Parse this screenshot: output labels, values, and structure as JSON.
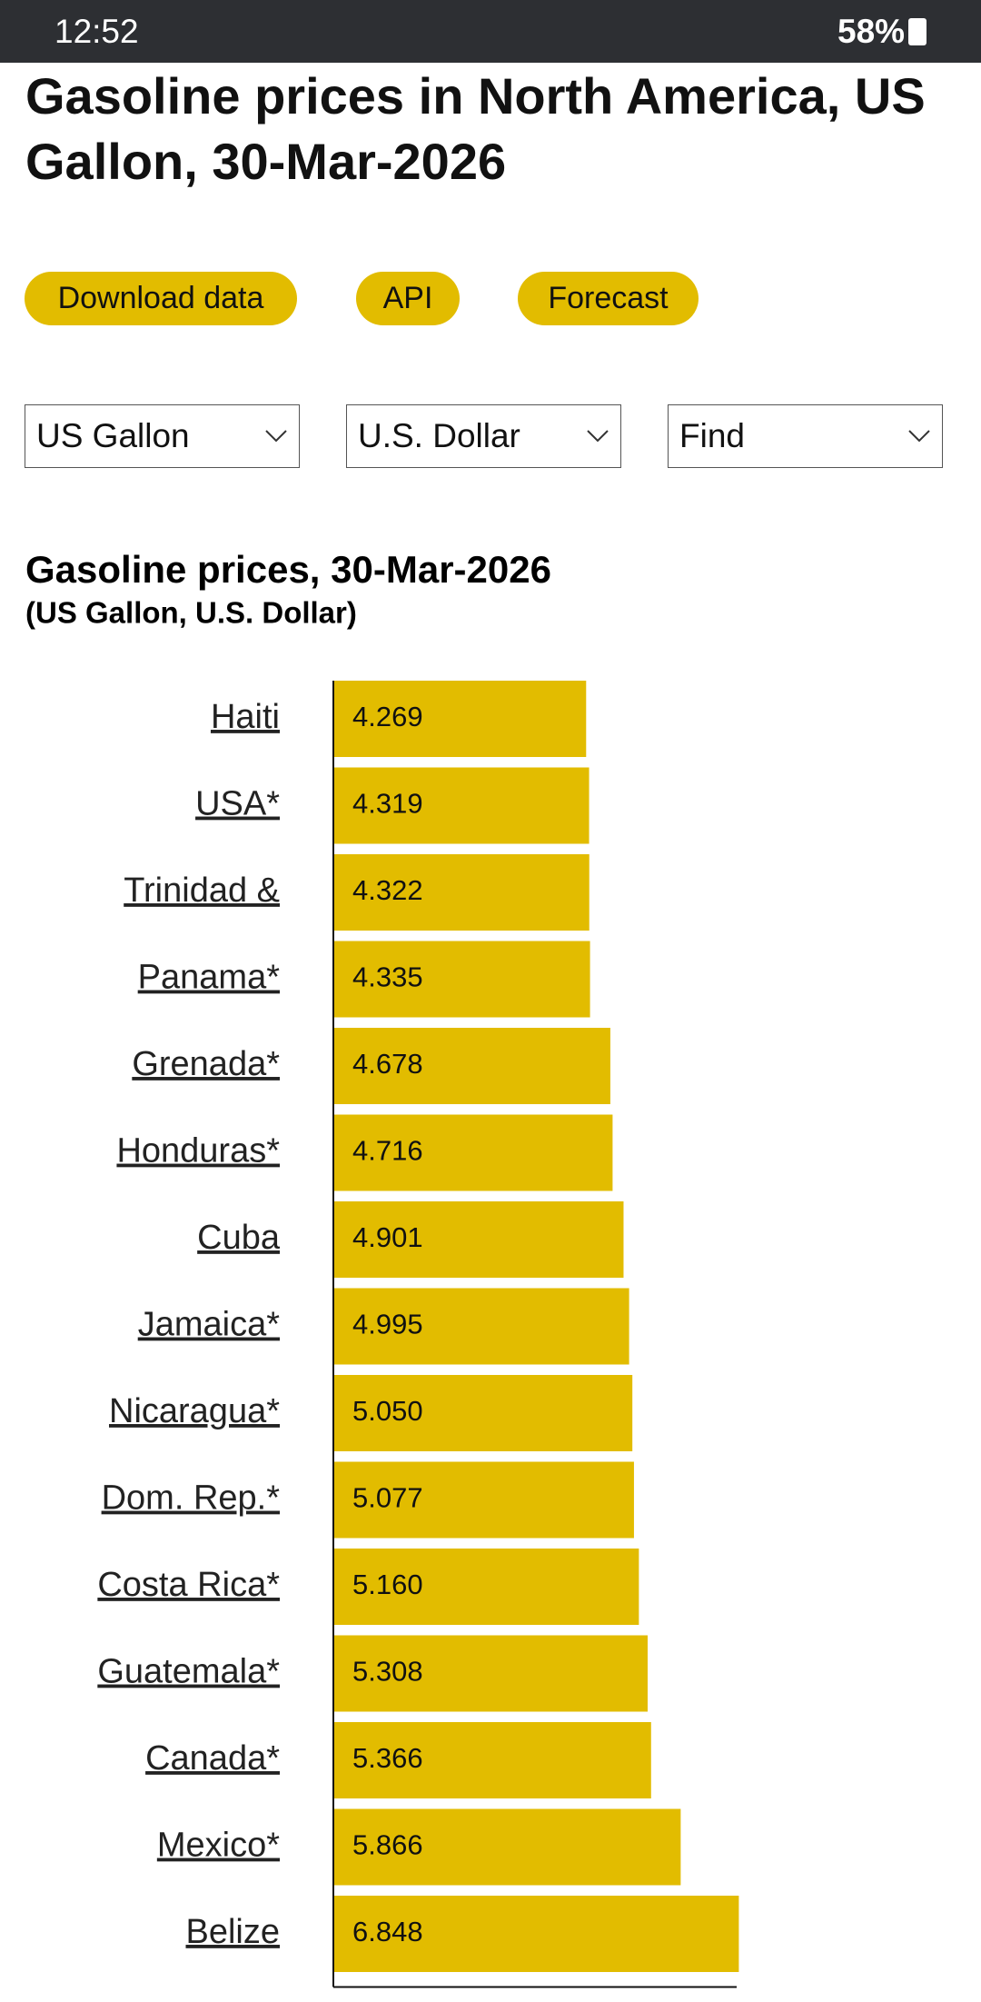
{
  "status_bar": {
    "time": "12:52",
    "battery": "58%"
  },
  "page": {
    "title": "Gasoline prices in North America, US Gallon, 30-Mar-2026",
    "buttons": [
      "Download data",
      "API",
      "Forecast"
    ],
    "selects": [
      "US Gallon",
      "U.S. Dollar",
      "Find"
    ]
  },
  "chart_data": {
    "type": "hbar",
    "title": "Gasoline prices, 30-Mar-2026",
    "subtitle": "(US Gallon, U.S. Dollar)",
    "categories": [
      "Haiti",
      "USA*",
      "Trinidad &",
      "Panama*",
      "Grenada*",
      "Honduras*",
      "Cuba",
      "Jamaica*",
      "Nicaragua*",
      "Dom. Rep.*",
      "Costa Rica*",
      "Guatemala*",
      "Canada*",
      "Mexico*",
      "Belize"
    ],
    "values": [
      4.269,
      4.319,
      4.322,
      4.335,
      4.678,
      4.716,
      4.901,
      4.995,
      5.05,
      5.077,
      5.16,
      5.308,
      5.366,
      5.866,
      6.848
    ],
    "value_labels": [
      "4.269",
      "4.319",
      "4.322",
      "4.335",
      "4.678",
      "4.716",
      "4.901",
      "4.995",
      "5.050",
      "5.077",
      "5.160",
      "5.308",
      "5.366",
      "5.866",
      "6.848"
    ],
    "color": "#e2bc00",
    "xlim": [
      0,
      10.8
    ]
  }
}
